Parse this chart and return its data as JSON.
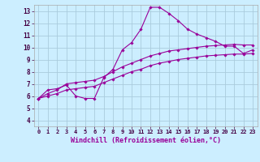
{
  "title": "",
  "xlabel": "Windchill (Refroidissement éolien,°C)",
  "ylabel": "",
  "bg_color": "#cceeff",
  "line_color": "#990099",
  "grid_color": "#aaccdd",
  "xlim": [
    -0.5,
    23.5
  ],
  "ylim": [
    3.5,
    13.5
  ],
  "xticks": [
    0,
    1,
    2,
    3,
    4,
    5,
    6,
    7,
    8,
    9,
    10,
    11,
    12,
    13,
    14,
    15,
    16,
    17,
    18,
    19,
    20,
    21,
    22,
    23
  ],
  "yticks": [
    4,
    5,
    6,
    7,
    8,
    9,
    10,
    11,
    12,
    13
  ],
  "line1": {
    "x": [
      0,
      1,
      2,
      3,
      4,
      5,
      6,
      7,
      8,
      9,
      10,
      11,
      12,
      13,
      14,
      15,
      16,
      17,
      18,
      19,
      20,
      21,
      22,
      23
    ],
    "y": [
      5.8,
      6.5,
      6.6,
      6.9,
      6.0,
      5.8,
      5.8,
      7.5,
      8.2,
      9.8,
      10.4,
      11.5,
      13.3,
      13.3,
      12.8,
      12.2,
      11.5,
      11.1,
      10.8,
      10.5,
      10.1,
      10.1,
      9.5,
      9.8
    ]
  },
  "line2": {
    "x": [
      0,
      1,
      2,
      3,
      4,
      5,
      6,
      7,
      8,
      9,
      10,
      11,
      12,
      13,
      14,
      15,
      16,
      17,
      18,
      19,
      20,
      21,
      22,
      23
    ],
    "y": [
      5.8,
      6.2,
      6.5,
      7.0,
      7.1,
      7.2,
      7.3,
      7.6,
      8.0,
      8.4,
      8.7,
      9.0,
      9.3,
      9.5,
      9.7,
      9.8,
      9.9,
      10.0,
      10.1,
      10.15,
      10.2,
      10.25,
      10.2,
      10.2
    ]
  },
  "line3": {
    "x": [
      0,
      1,
      2,
      3,
      4,
      5,
      6,
      7,
      8,
      9,
      10,
      11,
      12,
      13,
      14,
      15,
      16,
      17,
      18,
      19,
      20,
      21,
      22,
      23
    ],
    "y": [
      5.8,
      6.0,
      6.2,
      6.5,
      6.6,
      6.7,
      6.8,
      7.1,
      7.4,
      7.7,
      8.0,
      8.2,
      8.5,
      8.7,
      8.85,
      9.0,
      9.1,
      9.2,
      9.3,
      9.35,
      9.4,
      9.45,
      9.45,
      9.5
    ]
  },
  "marker": "D",
  "marker_size": 1.8,
  "linewidth": 0.8
}
